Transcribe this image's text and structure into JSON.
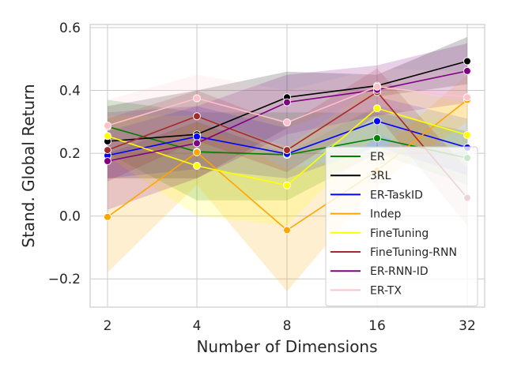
{
  "chart_data": {
    "type": "line",
    "title": "",
    "xlabel": "Number of Dimensions",
    "ylabel": "Stand. Global Return",
    "x": [
      "2",
      "4",
      "8",
      "16",
      "32"
    ],
    "ylim": [
      -0.29,
      0.61
    ],
    "yticks": [
      -0.2,
      0.0,
      0.2,
      0.4,
      0.6
    ],
    "ytick_labels": [
      "−0.2",
      "0.0",
      "0.2",
      "0.4",
      "0.6"
    ],
    "grid": true,
    "legend_position": "lower-right",
    "series": [
      {
        "name": "ER",
        "color": "#008000",
        "values": [
          0.285,
          0.205,
          0.195,
          0.248,
          0.185
        ],
        "lower": [
          0.2,
          0.05,
          0.05,
          0.2,
          0.1
        ],
        "upper": [
          0.37,
          0.33,
          0.33,
          0.33,
          0.27
        ]
      },
      {
        "name": "3RL",
        "color": "#000000",
        "values": [
          0.238,
          0.26,
          0.378,
          0.415,
          0.493
        ],
        "lower": [
          0.12,
          0.12,
          0.28,
          0.38,
          0.42
        ],
        "upper": [
          0.35,
          0.4,
          0.46,
          0.45,
          0.57
        ]
      },
      {
        "name": "ER-TaskID",
        "color": "#0000ff",
        "values": [
          0.193,
          0.253,
          0.198,
          0.302,
          0.218
        ],
        "lower": [
          0.12,
          0.15,
          0.12,
          0.22,
          0.13
        ],
        "upper": [
          0.27,
          0.35,
          0.28,
          0.38,
          0.31
        ]
      },
      {
        "name": "Indep",
        "color": "#ffa500",
        "values": [
          -0.003,
          0.203,
          -0.045,
          0.145,
          0.37
        ],
        "lower": [
          -0.18,
          0.1,
          -0.24,
          0.1,
          0.3
        ],
        "upper": [
          0.18,
          0.3,
          0.15,
          0.2,
          0.45
        ]
      },
      {
        "name": "FineTuning",
        "color": "#ffff00",
        "values": [
          0.255,
          0.16,
          0.098,
          0.343,
          0.258
        ],
        "lower": [
          0.19,
          0.0,
          -0.03,
          0.26,
          0.16
        ],
        "upper": [
          0.32,
          0.32,
          0.22,
          0.42,
          0.36
        ]
      },
      {
        "name": "FineTuning-RNN",
        "color": "#a52a2a",
        "values": [
          0.21,
          0.318,
          0.21,
          0.395,
          0.058
        ],
        "lower": [
          0.11,
          0.24,
          0.14,
          0.32,
          -0.03
        ],
        "upper": [
          0.31,
          0.4,
          0.29,
          0.47,
          0.15
        ]
      },
      {
        "name": "ER-RNN-ID",
        "color": "#800080",
        "values": [
          0.175,
          0.232,
          0.362,
          0.402,
          0.462
        ],
        "lower": [
          0.02,
          0.12,
          0.26,
          0.32,
          0.36
        ],
        "upper": [
          0.33,
          0.35,
          0.45,
          0.48,
          0.55
        ]
      },
      {
        "name": "ER-TX",
        "color": "#ffc0cb",
        "values": [
          0.288,
          0.375,
          0.298,
          0.412,
          0.378
        ],
        "lower": [
          0.2,
          0.3,
          0.2,
          0.35,
          0.3
        ],
        "upper": [
          0.37,
          0.45,
          0.4,
          0.47,
          0.46
        ]
      }
    ]
  }
}
